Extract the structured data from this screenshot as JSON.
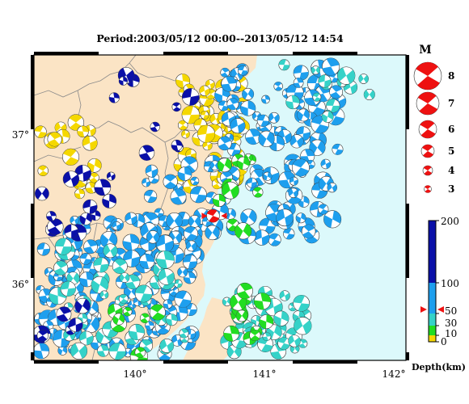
{
  "title": "Period:2003/05/12 00:00--2013/05/12 14:54",
  "axes": {
    "x_ticks": [
      "140°",
      "141°",
      "142°"
    ],
    "y_ticks": [
      "37°",
      "36°"
    ]
  },
  "magnitude_legend": {
    "heading": "M",
    "items": [
      "8",
      "7",
      "6",
      "5",
      "4",
      "3"
    ]
  },
  "depth_scale": {
    "tick_labels": [
      "200",
      "100",
      "50",
      "30",
      "10",
      "0"
    ],
    "axis_label": "Depth(km)",
    "colors": {
      "shallow": "#f5d800",
      "green": "#22dd22",
      "cyan": "#35d2c8",
      "blue": "#1e9fee",
      "deep": "#0a10a8"
    }
  },
  "colors": {
    "land": "#fbe4c5",
    "sea": "#dcf9fb",
    "event": "#ee1111"
  },
  "chart_data": {
    "type": "map",
    "x_range": [
      139.25,
      142.2
    ],
    "y_range": [
      35.55,
      37.6
    ],
    "x_ticks": [
      140,
      141,
      142
    ],
    "y_ticks": [
      36,
      37
    ],
    "magnitude_levels": [
      8,
      7,
      6,
      5,
      4,
      3
    ],
    "depth_ticks": [
      200,
      100,
      50,
      30,
      10,
      0
    ],
    "highlight_event": {
      "lon": 140.67,
      "lat": 36.52,
      "depth_km": 60
    }
  }
}
